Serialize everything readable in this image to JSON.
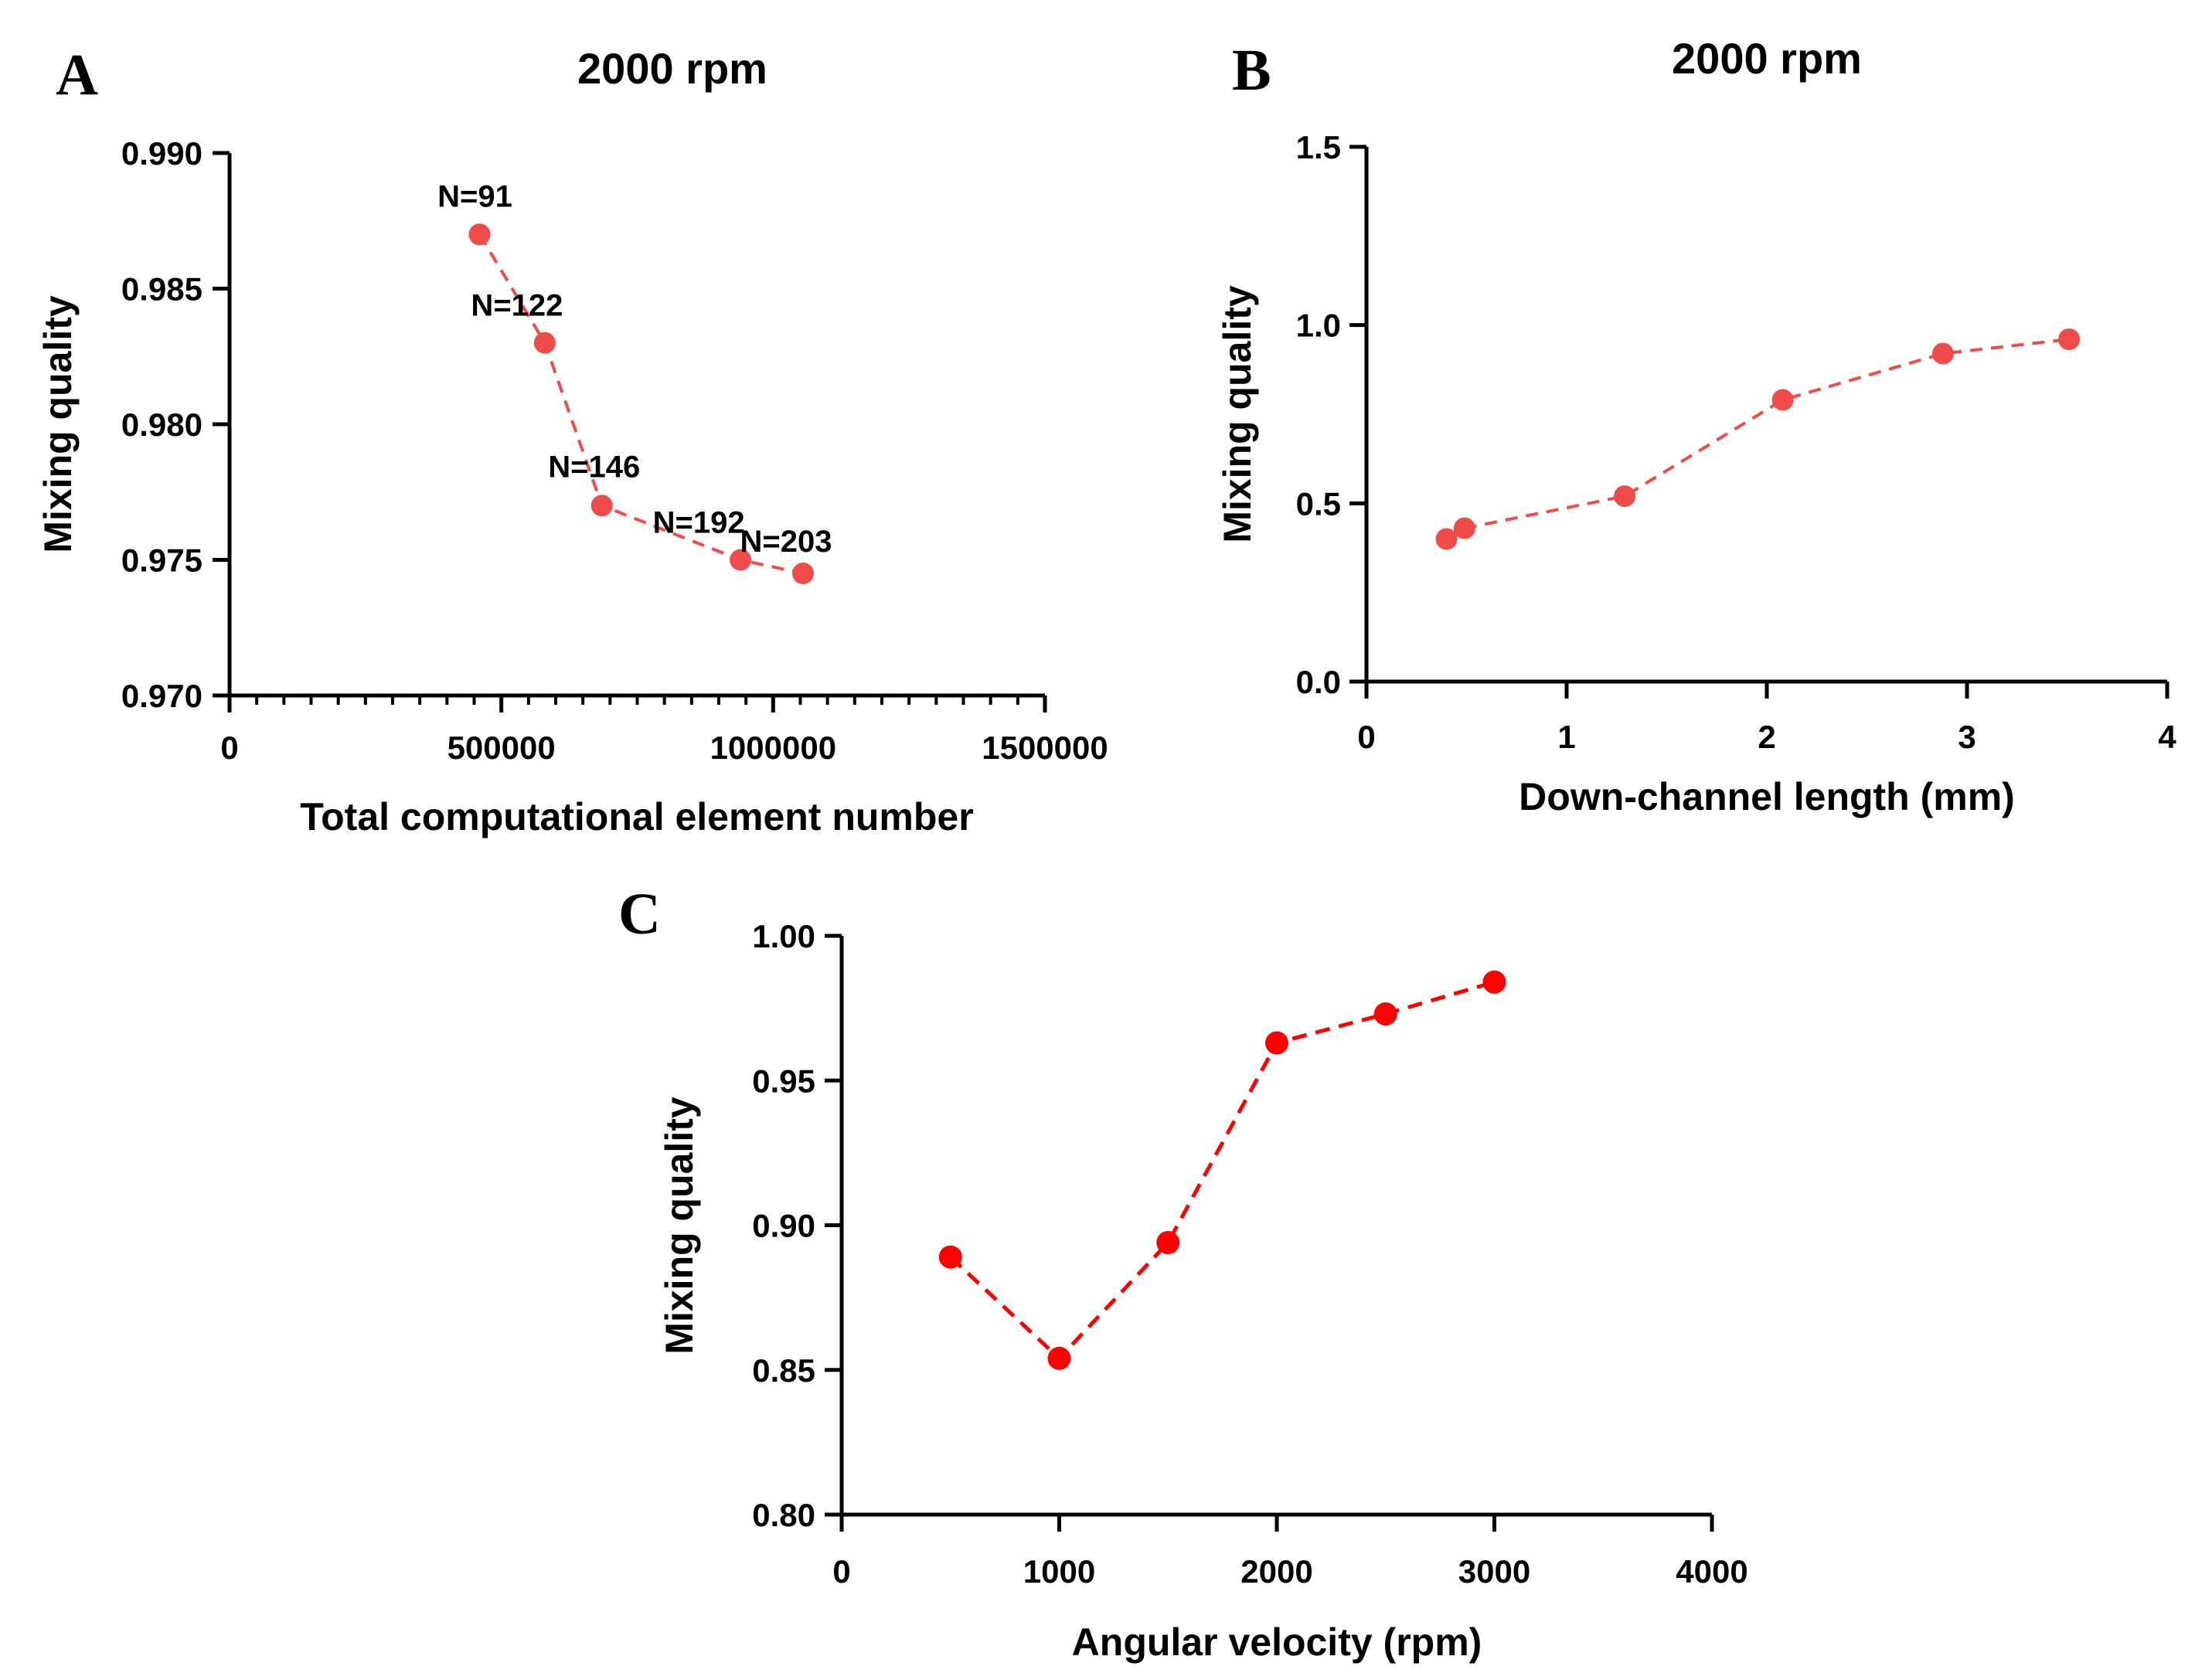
{
  "chart_data": [
    {
      "panel": "A",
      "type": "line",
      "title": "2000 rpm",
      "xlabel": "Total computational element number",
      "ylabel": "Mixing quality",
      "xlim": [
        0,
        1500000
      ],
      "ylim": [
        0.97,
        0.99
      ],
      "xticks": [
        0,
        500000,
        1000000,
        1500000
      ],
      "xtick_labels": [
        "0",
        "500000",
        "1000000",
        "1500000"
      ],
      "x_minor_step": 50000,
      "yticks": [
        0.97,
        0.975,
        0.98,
        0.985,
        0.99
      ],
      "ytick_labels": [
        "0.970",
        "0.975",
        "0.980",
        "0.985",
        "0.990"
      ],
      "grid": false,
      "series": [
        {
          "name": "Mixing quality",
          "color": "#ef4b4b",
          "line_style": "dashed",
          "x": [
            460000,
            580000,
            685000,
            940000,
            1055000
          ],
          "y": [
            0.987,
            0.983,
            0.977,
            0.975,
            0.9745
          ],
          "point_labels": [
            "N=91",
            "N=122",
            "N=146",
            "N=192",
            "N=203"
          ]
        }
      ]
    },
    {
      "panel": "B",
      "type": "line",
      "title": "2000 rpm",
      "xlabel": "Down-channel length (mm)",
      "ylabel": "Mixing quality",
      "xlim": [
        0,
        4
      ],
      "ylim": [
        0.0,
        1.5
      ],
      "xticks": [
        0,
        1,
        2,
        3,
        4
      ],
      "xtick_labels": [
        "0",
        "1",
        "2",
        "3",
        "4"
      ],
      "yticks": [
        0.0,
        0.5,
        1.0,
        1.5
      ],
      "ytick_labels": [
        "0.0",
        "0.5",
        "1.0",
        "1.5"
      ],
      "grid": false,
      "series": [
        {
          "name": "Mixing quality",
          "color": "#ef4b4b",
          "line_style": "dashed",
          "x": [
            0.4,
            0.49,
            1.29,
            2.08,
            2.88,
            3.51
          ],
          "y": [
            0.4,
            0.43,
            0.52,
            0.79,
            0.92,
            0.96
          ]
        }
      ]
    },
    {
      "panel": "C",
      "type": "line",
      "title": "",
      "xlabel": "Angular velocity (rpm)",
      "ylabel": "Mixing quality",
      "xlim": [
        0,
        4000
      ],
      "ylim": [
        0.8,
        1.0
      ],
      "xticks": [
        0,
        1000,
        2000,
        3000,
        4000
      ],
      "xtick_labels": [
        "0",
        "1000",
        "2000",
        "3000",
        "4000"
      ],
      "yticks": [
        0.8,
        0.85,
        0.9,
        0.95,
        1.0
      ],
      "ytick_labels": [
        "0.80",
        "0.85",
        "0.90",
        "0.95",
        "1.00"
      ],
      "grid": false,
      "series": [
        {
          "name": "Mixing quality",
          "color": "#ff0000",
          "line_style": "dashed",
          "x": [
            500,
            1000,
            1500,
            2000,
            2500,
            3000
          ],
          "y": [
            0.889,
            0.854,
            0.894,
            0.963,
            0.973,
            0.984
          ]
        }
      ]
    }
  ]
}
